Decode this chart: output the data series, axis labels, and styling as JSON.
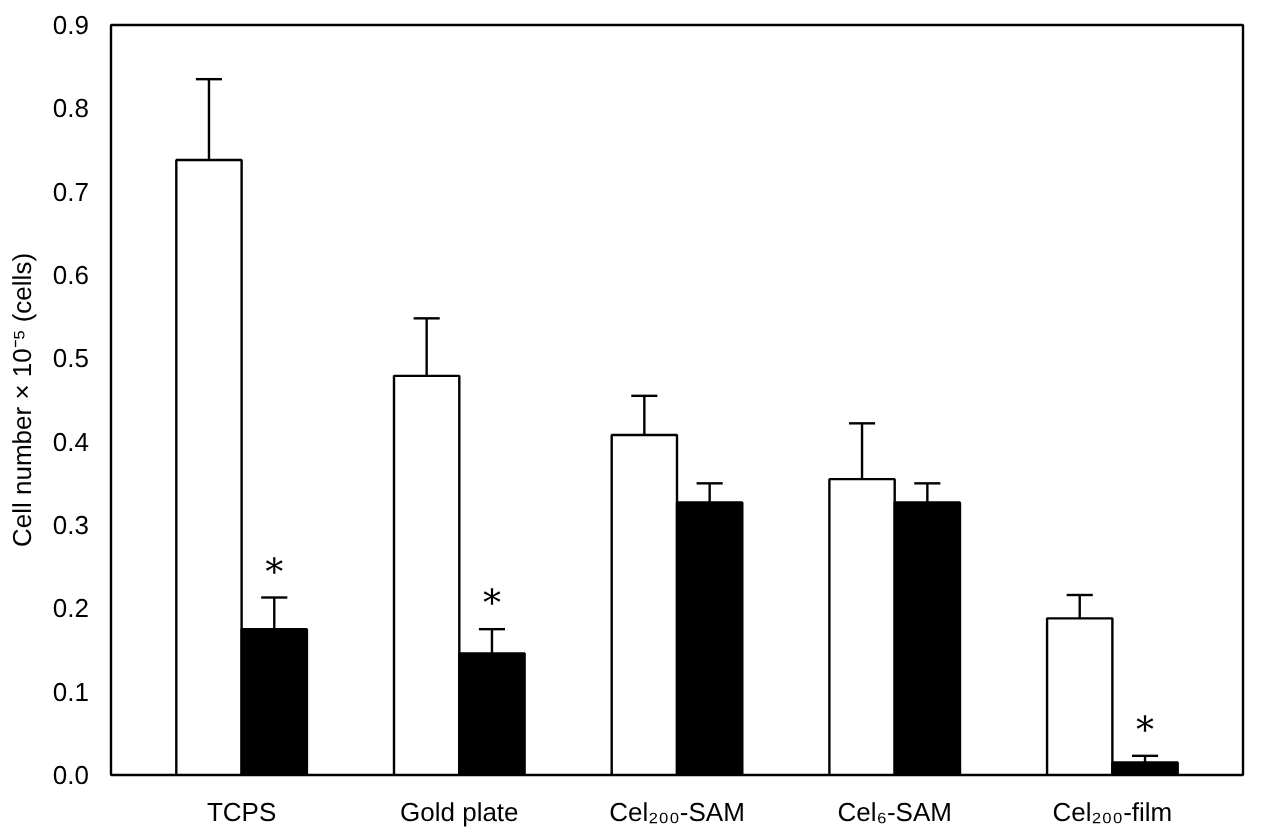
{
  "chart_data": {
    "type": "bar",
    "ylabel": "Cell number × 10⁻⁵ (cells)",
    "categories": [
      "TCPS",
      "Gold plate",
      "Cel₂₀₀-SAM",
      "Cel₆-SAM",
      "Cel₂₀₀-film"
    ],
    "series": [
      {
        "color": "#ffffff",
        "values": [
          0.738,
          0.479,
          0.408,
          0.355,
          0.188
        ],
        "errors": [
          [
            0.738,
            0.835
          ],
          [
            0.479,
            0.548
          ],
          [
            0.408,
            0.455
          ],
          [
            0.355,
            0.422
          ],
          [
            0.188,
            0.216
          ]
        ]
      },
      {
        "color": "#000000",
        "values": [
          0.175,
          0.146,
          0.327,
          0.327,
          0.015
        ],
        "errors": [
          [
            0.175,
            0.213
          ],
          [
            0.146,
            0.175
          ],
          [
            0.327,
            0.35
          ],
          [
            0.327,
            0.35
          ],
          [
            0.015,
            0.023
          ]
        ]
      }
    ],
    "annotations": [
      {
        "text": "*",
        "x": "TCPS",
        "y": 0.213
      },
      {
        "text": "*",
        "x": "Gold plate",
        "y": 0.175
      },
      {
        "text": "*",
        "x": "Cel₂₀₀-film",
        "y": 0.023
      }
    ],
    "ylim": [
      0,
      0.9
    ],
    "yticks": [
      "0.0",
      0.1,
      0.2,
      0.3,
      0.4,
      0.5,
      0.6,
      0.7,
      0.8,
      0.9
    ],
    "grid": false
  }
}
